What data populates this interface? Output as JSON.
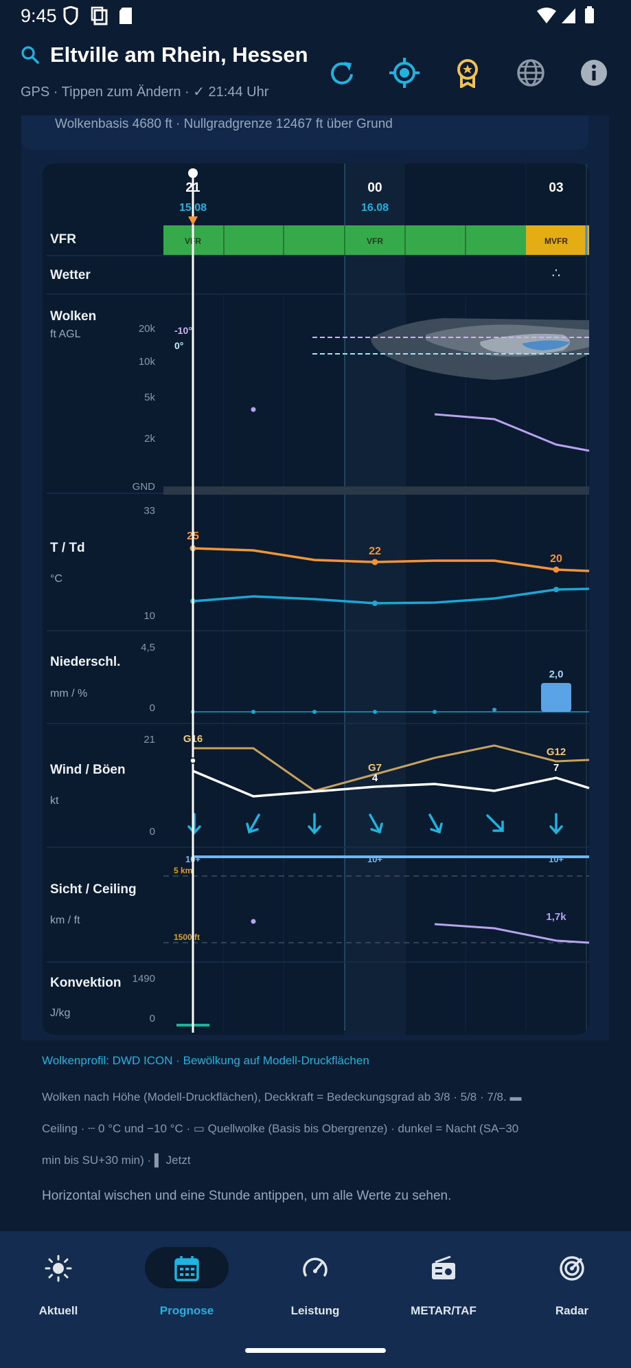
{
  "status_bar": {
    "time": "9:45"
  },
  "header": {
    "title": "Eltville am Rhein, Hessen",
    "subtitle": "GPS · Tippen zum Ändern · ✓ 21:44 Uhr"
  },
  "summary": {
    "text": "Wolkenbasis 4680 ft · Nullgradgrenze 12467 ft über Grund"
  },
  "timeline": {
    "hours": [
      "21",
      "00",
      "03"
    ],
    "dates": [
      "15.08",
      "16.08"
    ],
    "vfr_labels": [
      "VFR",
      "VFR",
      "MVFR"
    ]
  },
  "rows": {
    "vfr": {
      "label": "VFR"
    },
    "wetter": {
      "label": "Wetter",
      "symbol": "∴"
    },
    "wolken": {
      "label": "Wolken",
      "unit": "ft AGL",
      "ticks": [
        "20k",
        "10k",
        "5k",
        "2k",
        "GND"
      ],
      "iso_minus10": "-10°",
      "iso_zero": "0°"
    },
    "temp": {
      "label": "T / Td",
      "unit": "°C",
      "tick_top": "33",
      "tick_bottom": "10",
      "labels": [
        "25",
        "22",
        "20"
      ]
    },
    "precip": {
      "label": "Niederschl.",
      "unit": "mm / %",
      "tick_top": "4,5",
      "tick_bottom": "0",
      "value": "2,0"
    },
    "wind": {
      "label": "Wind / Böen",
      "unit": "kt",
      "tick_top": "21",
      "tick_bottom": "0",
      "gust_labels": [
        "G16",
        "G7",
        "G12"
      ],
      "wind_labels": [
        "4",
        "7"
      ]
    },
    "visibility": {
      "label": "Sicht / Ceiling",
      "unit": "km / ft",
      "vis_labels": [
        "10+",
        "10+",
        "10+"
      ],
      "line_5km": "5 km",
      "line_1500ft": "1500 ft",
      "ceiling": "1,7k"
    },
    "convection": {
      "label": "Konvektion",
      "unit": "J/kg",
      "tick_top": "1490",
      "tick_bottom": "0"
    }
  },
  "footer": {
    "source": "Wolkenprofil: DWD ICON · Bewölkung auf Modell-Druckflächen",
    "legend_line1": "Wolken nach Höhe (Modell-Druckflächen), Deckkraft = Bedeckungsgrad ab 3/8 · 5/8 · 7/8. ▬",
    "legend_line2": "Ceiling · ┄ 0 °C und −10 °C · ▭ Quellwolke (Basis bis Obergrenze) · dunkel = Nacht (SA−30",
    "legend_line3": "min bis SU+30 min) · ▌ Jetzt",
    "hint": "Horizontal wischen und eine Stunde antippen, um alle Werte zu sehen."
  },
  "nav": {
    "items": [
      {
        "label": "Aktuell",
        "icon": "sun-icon"
      },
      {
        "label": "Prognose",
        "icon": "calendar-icon"
      },
      {
        "label": "Leistung",
        "icon": "gauge-icon"
      },
      {
        "label": "METAR/TAF",
        "icon": "radio-icon"
      },
      {
        "label": "Radar",
        "icon": "radar-icon"
      }
    ],
    "active": "Prognose"
  },
  "colors": {
    "accent": "#1fb3e0",
    "vfr_green": "#36a94a",
    "mvfr_yellow": "#e4ad14",
    "temp_orange": "#f39536",
    "dewpoint_cyan": "#1aa7d4",
    "gust_tan": "#c7a25d",
    "ceiling_purple": "#b9a3f0",
    "visibility_blue": "#6fb6f2"
  }
}
